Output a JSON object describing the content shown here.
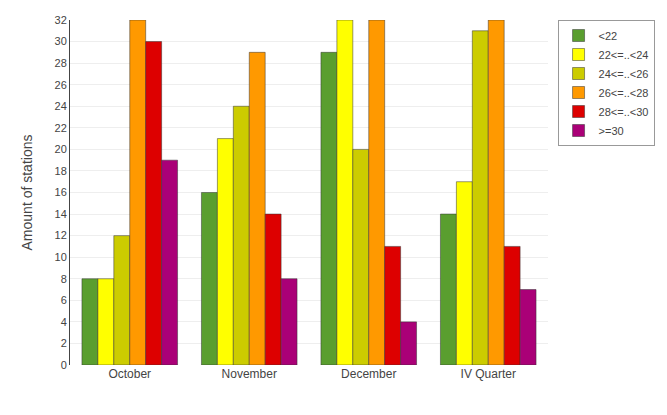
{
  "chart_data": {
    "type": "bar",
    "ylabel": "Amount of stations",
    "categories": [
      "October",
      "November",
      "December",
      "IV Quarter"
    ],
    "series": [
      {
        "name": "<22",
        "color": "#5a9e2f",
        "values": [
          8,
          16,
          29,
          14
        ]
      },
      {
        "name": "22<=..<24",
        "color": "#ffff00",
        "values": [
          8,
          21,
          32,
          17
        ]
      },
      {
        "name": "24<=..<26",
        "color": "#cccc00",
        "values": [
          12,
          24,
          20,
          31
        ]
      },
      {
        "name": "26<=..<28",
        "color": "#ff9900",
        "values": [
          32,
          29,
          32,
          32
        ]
      },
      {
        "name": "28<=..<30",
        "color": "#dd0000",
        "values": [
          30,
          14,
          11,
          11
        ]
      },
      {
        "name": ">=30",
        "color": "#aa0077",
        "values": [
          19,
          8,
          4,
          7
        ]
      }
    ],
    "ylim": [
      0,
      32
    ],
    "yticks": [
      0,
      2,
      4,
      6,
      8,
      10,
      12,
      14,
      16,
      18,
      20,
      22,
      24,
      26,
      28,
      30,
      32
    ],
    "grid": true,
    "legend": "right"
  }
}
